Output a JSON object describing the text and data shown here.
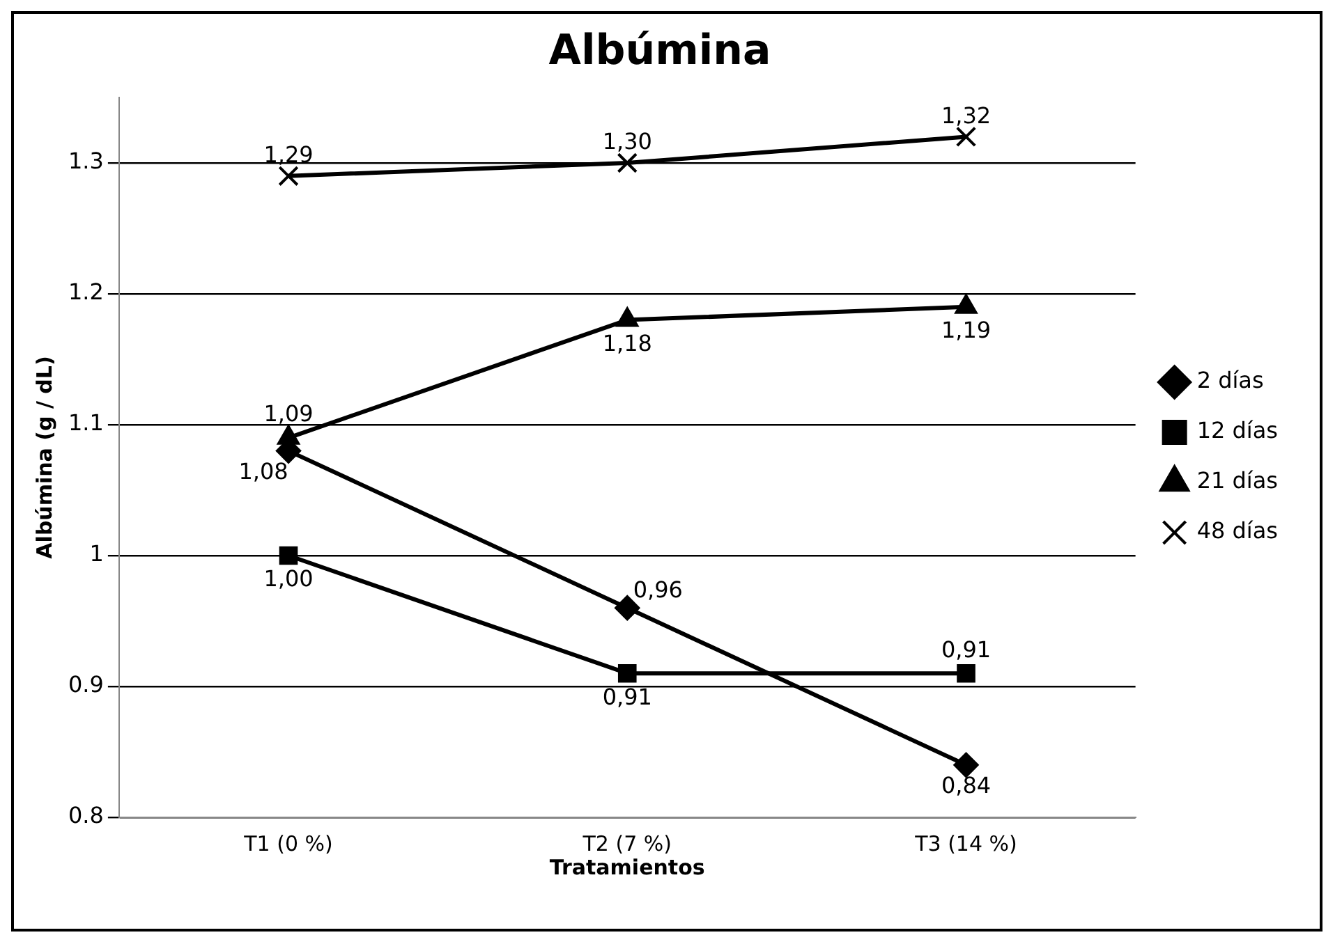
{
  "chart_data": {
    "type": "line",
    "title": "Albúmina",
    "xlabel": "Tratamientos",
    "ylabel": "Albúmina (g / dL)",
    "categories": [
      "T1 (0 %)",
      "T2 (7 %)",
      "T3 (14 %)"
    ],
    "series": [
      {
        "name": "2 días",
        "color": "#000000",
        "marker": "diamond",
        "values": [
          1.08,
          0.96,
          0.84
        ],
        "value_labels": [
          "1,08",
          "0,96",
          "0,84"
        ]
      },
      {
        "name": "12 días",
        "color": "#000000",
        "marker": "square",
        "values": [
          1.0,
          0.91,
          0.91
        ],
        "value_labels": [
          "1,00",
          "0,91",
          "0,91"
        ]
      },
      {
        "name": "21 días",
        "color": "#000000",
        "marker": "triangle",
        "values": [
          1.09,
          1.18,
          1.19
        ],
        "value_labels": [
          "1,09",
          "1,18",
          "1,19"
        ]
      },
      {
        "name": "48 días",
        "color": "#000000",
        "marker": "cross",
        "values": [
          1.29,
          1.3,
          1.32
        ],
        "value_labels": [
          "1,29",
          "1,30",
          "1,32"
        ]
      }
    ],
    "ylim": [
      0.8,
      1.35
    ],
    "yticks": [
      0.8,
      0.9,
      1,
      1.1,
      1.2,
      1.3
    ],
    "grid": "y",
    "legend": "right",
    "line_style": "solid"
  }
}
